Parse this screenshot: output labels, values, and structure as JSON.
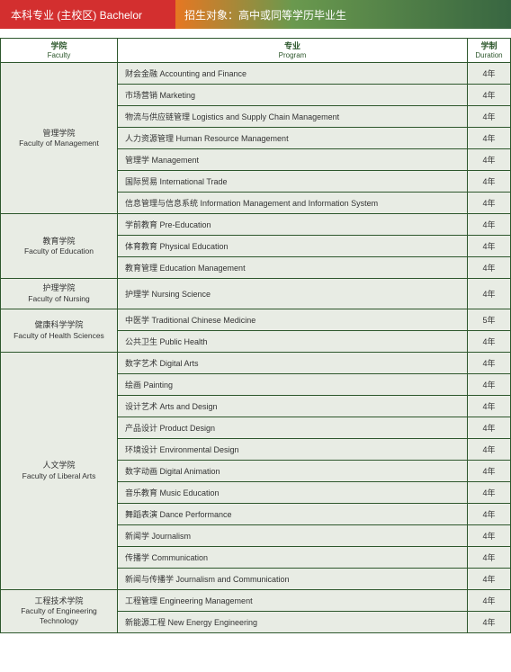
{
  "header": {
    "left": "本科专业 (主校区) Bachelor",
    "right": "招生对象：高中或同等学历毕业生"
  },
  "columns": {
    "faculty": {
      "cn": "学院",
      "en": "Faculty"
    },
    "program": {
      "cn": "专业",
      "en": "Program"
    },
    "duration": {
      "cn": "学制",
      "en": "Duration"
    }
  },
  "faculties": [
    {
      "cn": "管理学院",
      "en": "Faculty of Management",
      "programs": [
        {
          "name": "财会金融 Accounting and Finance",
          "duration": "4年"
        },
        {
          "name": "市场营销 Marketing",
          "duration": "4年"
        },
        {
          "name": "物流与供应链管理 Logistics and Supply Chain Management",
          "duration": "4年"
        },
        {
          "name": "人力资源管理 Human Resource Management",
          "duration": "4年"
        },
        {
          "name": "管理学 Management",
          "duration": "4年"
        },
        {
          "name": "国际贸易 International Trade",
          "duration": "4年"
        },
        {
          "name": "信息管理与信息系统 Information Management and Information System",
          "duration": "4年"
        }
      ]
    },
    {
      "cn": "教育学院",
      "en": "Faculty of Education",
      "programs": [
        {
          "name": "学前教育 Pre-Education",
          "duration": "4年"
        },
        {
          "name": "体育教育 Physical Education",
          "duration": "4年"
        },
        {
          "name": "教育管理 Education Management",
          "duration": "4年"
        }
      ]
    },
    {
      "cn": "护理学院",
      "en": "Faculty of Nursing",
      "programs": [
        {
          "name": "护理学 Nursing Science",
          "duration": "4年"
        }
      ]
    },
    {
      "cn": "健康科学学院",
      "en": "Faculty of Health Sciences",
      "programs": [
        {
          "name": "中医学 Traditional Chinese Medicine",
          "duration": "5年"
        },
        {
          "name": "公共卫生 Public Health",
          "duration": "4年"
        }
      ]
    },
    {
      "cn": "人文学院",
      "en": "Faculty of Liberal Arts",
      "programs": [
        {
          "name": "数字艺术 Digital Arts",
          "duration": "4年"
        },
        {
          "name": "绘画 Painting",
          "duration": "4年"
        },
        {
          "name": "设计艺术 Arts and Design",
          "duration": "4年"
        },
        {
          "name": "产品设计 Product Design",
          "duration": "4年"
        },
        {
          "name": "环境设计 Environmental Design",
          "duration": "4年"
        },
        {
          "name": "数字动画 Digital Animation",
          "duration": "4年"
        },
        {
          "name": "音乐教育 Music Education",
          "duration": "4年"
        },
        {
          "name": "舞蹈表演 Dance Performance",
          "duration": "4年"
        },
        {
          "name": "新闻学 Journalism",
          "duration": "4年"
        },
        {
          "name": "传播学 Communication",
          "duration": "4年"
        },
        {
          "name": "新闻与传播学 Journalism and Communication",
          "duration": "4年"
        }
      ]
    },
    {
      "cn": "工程技术学院",
      "en": "Faculty of Engineering Technology",
      "programs": [
        {
          "name": "工程管理 Engineering Management",
          "duration": "4年"
        },
        {
          "name": "新能源工程 New Energy Engineering",
          "duration": "4年"
        }
      ]
    }
  ]
}
